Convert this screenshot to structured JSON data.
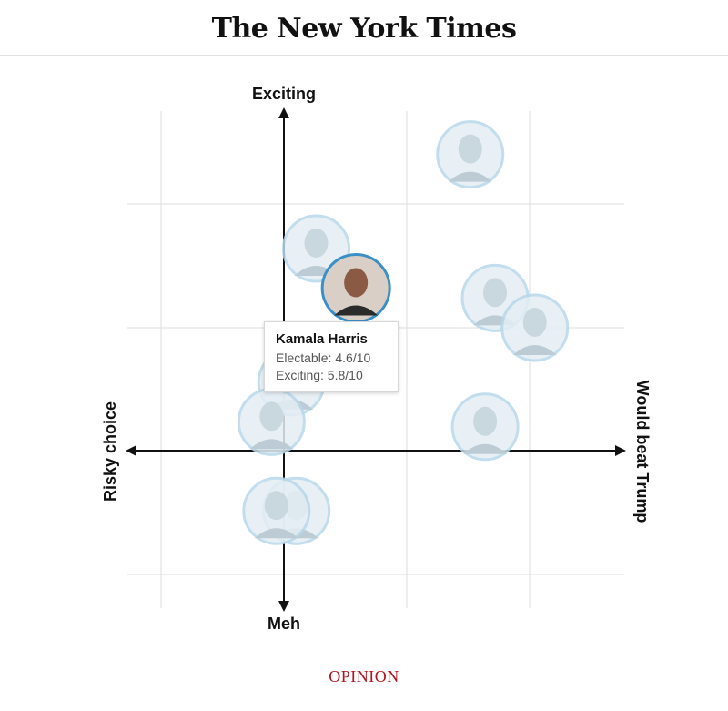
{
  "masthead": {
    "title": "The New York Times"
  },
  "footer": {
    "section_label": "OPINION",
    "section_color": "#b0141c"
  },
  "chart_data": {
    "type": "scatter",
    "axes": {
      "top_label": "Exciting",
      "bottom_label": "Meh",
      "left_label": "Risky choice",
      "right_label": "Would beat Trump"
    },
    "xlim": [
      0,
      10
    ],
    "ylim": [
      0,
      10
    ],
    "grid": true,
    "points": [
      {
        "x": 6.9,
        "y": 8.5,
        "highlighted": false
      },
      {
        "x": 3.8,
        "y": 6.6,
        "highlighted": false
      },
      {
        "x": 7.4,
        "y": 5.6,
        "highlighted": false
      },
      {
        "x": 8.2,
        "y": 5.0,
        "highlighted": false
      },
      {
        "x": 3.3,
        "y": 3.9,
        "highlighted": false
      },
      {
        "x": 2.9,
        "y": 3.1,
        "highlighted": false
      },
      {
        "x": 7.2,
        "y": 3.0,
        "highlighted": false
      },
      {
        "x": 3.4,
        "y": 1.3,
        "highlighted": false
      },
      {
        "x": 3.0,
        "y": 1.3,
        "highlighted": false
      },
      {
        "x": 4.6,
        "y": 5.8,
        "highlighted": true
      }
    ],
    "tooltip": {
      "name": "Kamala Harris",
      "electable": "Electable: 4.6/10",
      "exciting": "Exciting: 5.8/10"
    },
    "colors": {
      "axis": "#111111",
      "grid": "#dddddd",
      "face_ring": "#b8d8ea",
      "highlight_ring": "#3a8fc6",
      "face_fill": "#e4eef4"
    }
  }
}
